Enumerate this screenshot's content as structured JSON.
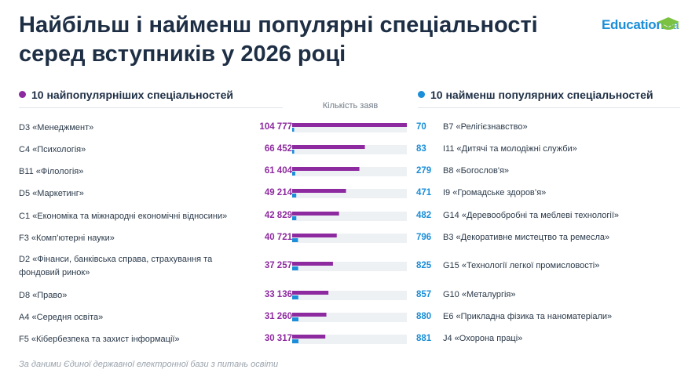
{
  "title": {
    "line1": "Найбільш і найменш популярні спеціальності",
    "line2": "серед вступників у 2026 році"
  },
  "logo": {
    "main": "Education",
    "suffix": ".ua"
  },
  "colors": {
    "popular": "#8e2aa0",
    "unpopular": "#1a8ed8",
    "track": "#eef1f4"
  },
  "chart_data": {
    "type": "bar",
    "title": "Найбільш і найменш популярні спеціальності серед вступників у 2026 році",
    "axis_label": "Кількість заяв",
    "xlim": [
      0,
      104777
    ],
    "series": [
      {
        "name": "10 найпопулярніших спеціальностей",
        "categories": [
          "D3 «Менеджмент»",
          "C4 «Психологія»",
          "B11 «Філологія»",
          "D5 «Маркетинг»",
          "C1 «Економіка та міжнародні економічні відносини»",
          "F3 «Комп’ютерні науки»",
          "D2 «Фінанси, банківська справа, страхування та фондовий ринок»",
          "D8 «Право»",
          "A4 «Середня освіта»",
          "F5 «Кібербезпека та захист інформації»"
        ],
        "values": [
          104777,
          66452,
          61404,
          49214,
          42829,
          40721,
          37257,
          33136,
          31260,
          30317
        ],
        "labels": [
          "104 777",
          "66 452",
          "61 404",
          "49 214",
          "42 829",
          "40 721",
          "37 257",
          "33 136",
          "31 260",
          "30 317"
        ]
      },
      {
        "name": "10 найменш популярних спеціальностей",
        "categories": [
          "B7 «Релігієзнавство»",
          "I11 «Дитячі та молодіжні служби»",
          "B8 «Богослов'я»",
          "I9 «Громадське здоров’я»",
          "G14 «Деревообробні та меблеві технології»",
          "B3 «Декоративне мистецтво та ремесла»",
          "G15 «Технології легкої промисловості»",
          "G10 «Металургія»",
          "E6 «Прикладна фізика та наноматеріали»",
          "J4 «Охорона праці»"
        ],
        "values": [
          70,
          83,
          279,
          471,
          482,
          796,
          825,
          857,
          880,
          881
        ],
        "labels": [
          "70",
          "83",
          "279",
          "471",
          "482",
          "796",
          "825",
          "857",
          "880",
          "881"
        ]
      }
    ]
  },
  "footer": "За даними Єдиної державної електронної бази з питань освіти"
}
